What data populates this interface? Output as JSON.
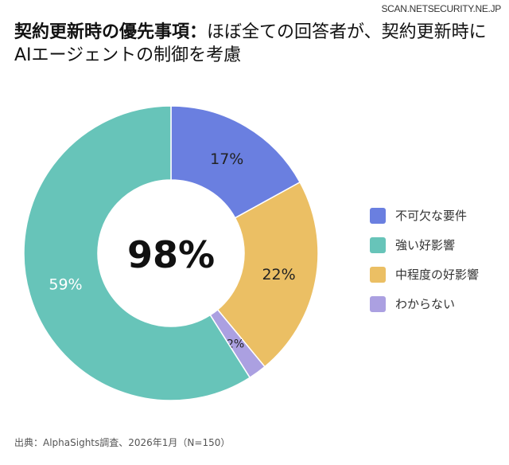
{
  "watermark": "SCAN.NETSECURITY.NE.JP",
  "title_bold": "契約更新時の優先事項：",
  "title_rest": "ほぼ全ての回答者が、契約更新時にAIエージェントの制御を考慮",
  "source": "出典：AlphaSights調査、2026年1月（N=150）",
  "chart_data": {
    "type": "pie",
    "donut": true,
    "center_label": "98%",
    "categories": [
      "不可欠な要件",
      "強い好影響",
      "中程度の好影響",
      "わからない"
    ],
    "values": [
      17,
      59,
      22,
      2
    ],
    "slice_order": [
      "不可欠な要件",
      "中程度の好影響",
      "わからない",
      "強い好影響"
    ],
    "data_labels": [
      "17%",
      "59%",
      "22%",
      "2%"
    ],
    "colors": [
      "#6a7fe0",
      "#67c4b9",
      "#ebbf64",
      "#aba0e1"
    ],
    "label_colors": [
      "#222222",
      "#ffffff",
      "#222222",
      "#222222"
    ],
    "legend_position": "right"
  }
}
